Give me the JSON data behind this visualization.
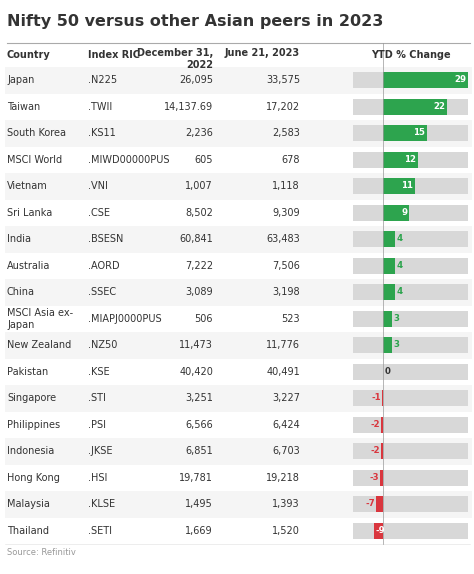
{
  "title": "Nifty 50 versus other Asian peers in 2023",
  "rows": [
    {
      "country": "Japan",
      "ric": ".N225",
      "dec2022": "26,095",
      "jun2023": "33,575",
      "ytd": 29
    },
    {
      "country": "Taiwan",
      "ric": ".TWII",
      "dec2022": "14,137.69",
      "jun2023": "17,202",
      "ytd": 22
    },
    {
      "country": "South Korea",
      "ric": ".KS11",
      "dec2022": "2,236",
      "jun2023": "2,583",
      "ytd": 15
    },
    {
      "country": "MSCI World",
      "ric": ".MIWD00000PUS",
      "dec2022": "605",
      "jun2023": "678",
      "ytd": 12
    },
    {
      "country": "Vietnam",
      "ric": ".VNI",
      "dec2022": "1,007",
      "jun2023": "1,118",
      "ytd": 11
    },
    {
      "country": "Sri Lanka",
      "ric": ".CSE",
      "dec2022": "8,502",
      "jun2023": "9,309",
      "ytd": 9
    },
    {
      "country": "India",
      "ric": ".BSESN",
      "dec2022": "60,841",
      "jun2023": "63,483",
      "ytd": 4
    },
    {
      "country": "Australia",
      "ric": ".AORD",
      "dec2022": "7,222",
      "jun2023": "7,506",
      "ytd": 4
    },
    {
      "country": "China",
      "ric": ".SSEC",
      "dec2022": "3,089",
      "jun2023": "3,198",
      "ytd": 4
    },
    {
      "country": "MSCI Asia ex-\nJapan",
      "ric": ".MIAPJ0000PUS",
      "dec2022": "506",
      "jun2023": "523",
      "ytd": 3
    },
    {
      "country": "New Zealand",
      "ric": ".NZ50",
      "dec2022": "11,473",
      "jun2023": "11,776",
      "ytd": 3
    },
    {
      "country": "Pakistan",
      "ric": ".KSE",
      "dec2022": "40,420",
      "jun2023": "40,491",
      "ytd": 0
    },
    {
      "country": "Singapore",
      "ric": ".STI",
      "dec2022": "3,251",
      "jun2023": "3,227",
      "ytd": -1
    },
    {
      "country": "Philippines",
      "ric": ".PSI",
      "dec2022": "6,566",
      "jun2023": "6,424",
      "ytd": -2
    },
    {
      "country": "Indonesia",
      "ric": ".JKSE",
      "dec2022": "6,851",
      "jun2023": "6,703",
      "ytd": -2
    },
    {
      "country": "Hong Kong",
      "ric": ".HSI",
      "dec2022": "19,781",
      "jun2023": "19,218",
      "ytd": -3
    },
    {
      "country": "Malaysia",
      "ric": ".KLSE",
      "dec2022": "1,495",
      "jun2023": "1,393",
      "ytd": -7
    },
    {
      "country": "Thailand",
      "ric": ".SETI",
      "dec2022": "1,669",
      "jun2023": "1,520",
      "ytd": -9
    }
  ],
  "green_color": "#2da44e",
  "red_color": "#d9363e",
  "bar_bg_color": "#d8d8d8",
  "bg_color": "#ffffff",
  "text_color": "#333333",
  "light_row_color": "#f5f5f5",
  "header_sep_color": "#aaaaaa",
  "row_sep_color": "#e0e0e0",
  "source_text": "Source: Refinitiv",
  "max_abs_ytd": 29,
  "title_fontsize": 11.5,
  "header_fontsize": 7.0,
  "cell_fontsize": 7.0
}
